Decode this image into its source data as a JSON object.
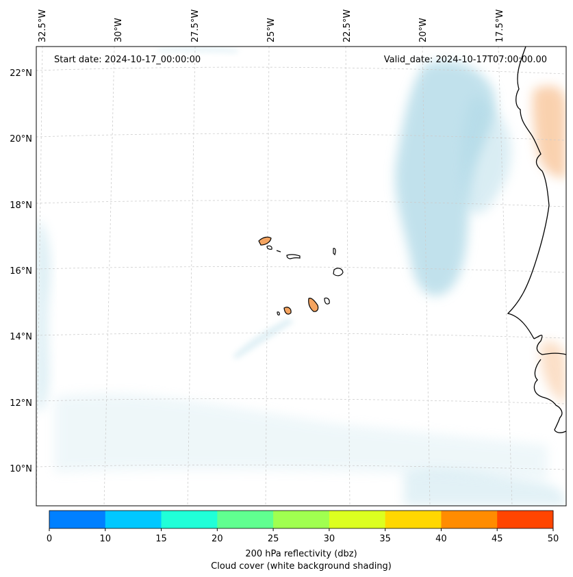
{
  "header": {
    "start_date": "Start date: 2024-10-17_00:00:00",
    "valid_date": "Valid_date: 2024-10-17T07:00:00.00"
  },
  "axes": {
    "lon_labels": [
      "32.5°W",
      "30°W",
      "27.5°W",
      "25°W",
      "22.5°W",
      "20°W",
      "17.5°W"
    ],
    "lat_labels": [
      "22°N",
      "20°N",
      "18°N",
      "16°N",
      "14°N",
      "12°N",
      "10°N"
    ]
  },
  "colorbar": {
    "colors": [
      "#0080ff",
      "#00c8ff",
      "#20ffd8",
      "#60ff90",
      "#a0ff50",
      "#dcff20",
      "#ffd700",
      "#ff8c00",
      "#ff4500"
    ],
    "ticks": [
      "0",
      "10",
      "15",
      "20",
      "25",
      "30",
      "35",
      "40",
      "45",
      "50"
    ],
    "label_line1": "200 hPa reflectivity (dbz)",
    "label_line2": "Cloud cover (white background shading)"
  },
  "colors": {
    "cloud": "#add8e6",
    "land_fill": "#f4a460",
    "coast": "#000000",
    "grid": "#cccccc"
  }
}
